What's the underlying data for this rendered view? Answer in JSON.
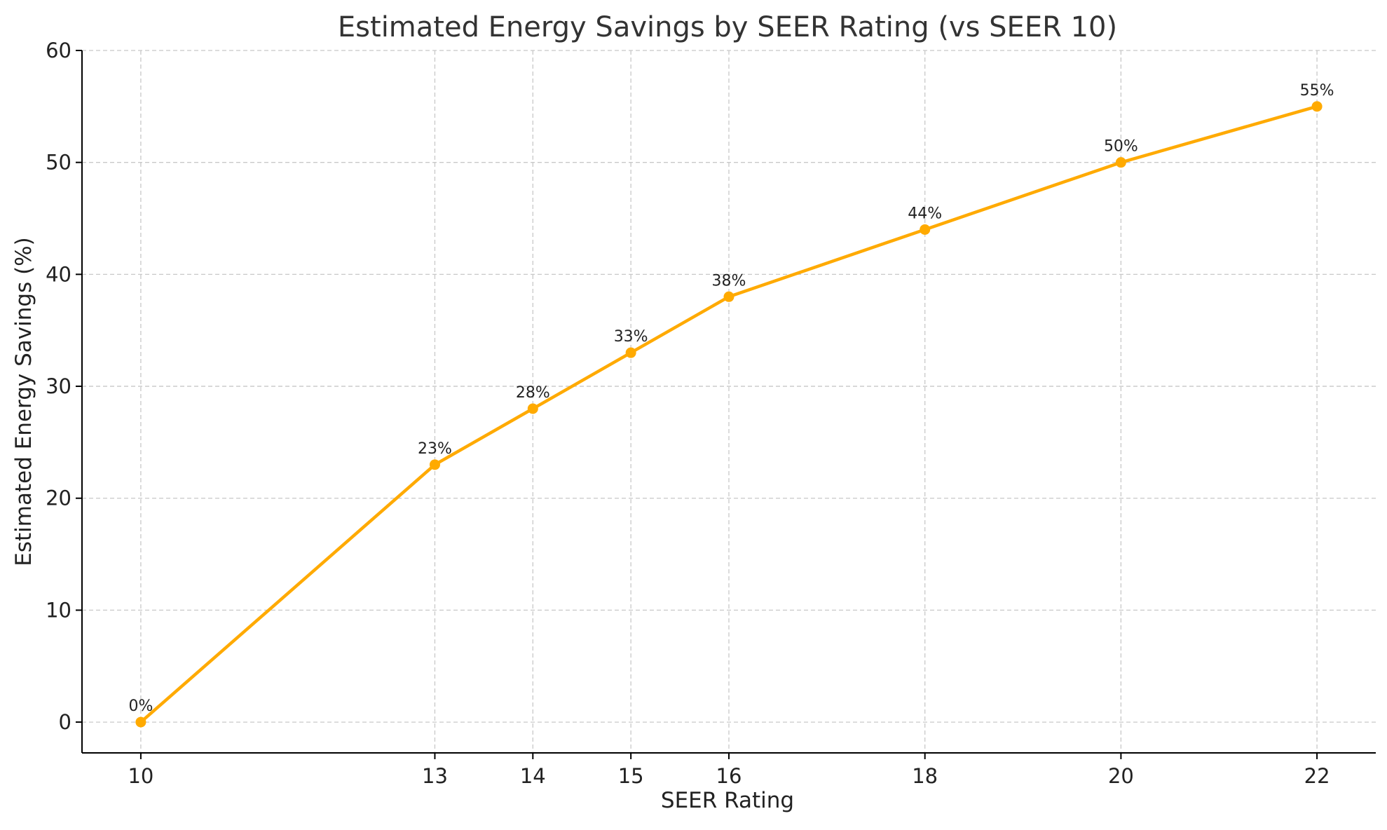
{
  "chart_data": {
    "type": "line",
    "title": "Estimated Energy Savings by SEER Rating (vs SEER 10)",
    "xlabel": "SEER Rating",
    "ylabel": "Estimated Energy Savings (%)",
    "x": [
      10,
      13,
      14,
      15,
      16,
      18,
      20,
      22
    ],
    "series": [
      {
        "values": [
          0,
          23,
          28,
          33,
          38,
          44,
          50,
          55
        ],
        "data_labels": [
          "0%",
          "23%",
          "28%",
          "33%",
          "38%",
          "44%",
          "50%",
          "55%"
        ],
        "color": "#FFAA00"
      }
    ],
    "xticks": [
      10,
      13,
      14,
      15,
      16,
      18,
      20,
      22
    ],
    "yticks": [
      0,
      10,
      20,
      30,
      40,
      50,
      60
    ],
    "xlim": [
      9.4,
      22.6
    ],
    "ylim": [
      -2.75,
      60
    ],
    "grid": true,
    "legend": "none",
    "marker": "circle"
  }
}
